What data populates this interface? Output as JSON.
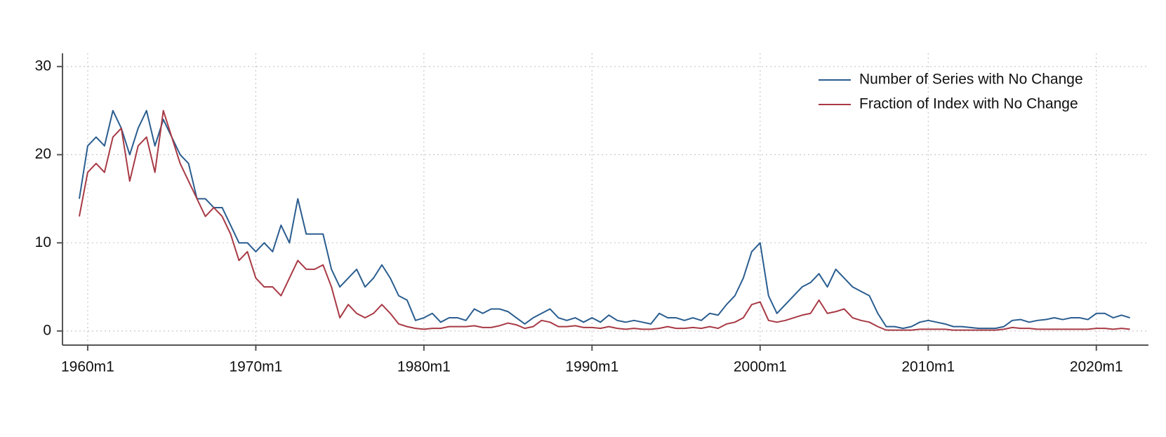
{
  "chart_data": {
    "type": "line",
    "x": [
      1959.5,
      1960,
      1960.5,
      1961,
      1961.5,
      1962,
      1962.5,
      1963,
      1963.5,
      1964,
      1964.5,
      1965,
      1965.5,
      1966,
      1966.5,
      1967,
      1967.5,
      1968,
      1968.5,
      1969,
      1969.5,
      1970,
      1970.5,
      1971,
      1971.5,
      1972,
      1972.5,
      1973,
      1973.5,
      1974,
      1974.5,
      1975,
      1975.5,
      1976,
      1976.5,
      1977,
      1977.5,
      1978,
      1978.5,
      1979,
      1979.5,
      1980,
      1980.5,
      1981,
      1981.5,
      1982,
      1982.5,
      1983,
      1983.5,
      1984,
      1984.5,
      1985,
      1985.5,
      1986,
      1986.5,
      1987,
      1987.5,
      1988,
      1988.5,
      1989,
      1989.5,
      1990,
      1990.5,
      1991,
      1991.5,
      1992,
      1992.5,
      1993,
      1993.5,
      1994,
      1994.5,
      1995,
      1995.5,
      1996,
      1996.5,
      1997,
      1997.5,
      1998,
      1998.5,
      1999,
      1999.5,
      2000,
      2000.5,
      2001,
      2001.5,
      2002,
      2002.5,
      2003,
      2003.5,
      2004,
      2004.5,
      2005,
      2005.5,
      2006,
      2006.5,
      2007,
      2007.5,
      2008,
      2008.5,
      2009,
      2009.5,
      2010,
      2010.5,
      2011,
      2011.5,
      2012,
      2012.5,
      2013,
      2013.5,
      2014,
      2014.5,
      2015,
      2015.5,
      2016,
      2016.5,
      2017,
      2017.5,
      2018,
      2018.5,
      2019,
      2019.5,
      2020,
      2020.5,
      2021,
      2021.5,
      2022
    ],
    "series": [
      {
        "name": "Number of Series with No Change",
        "color": "#2a5d8f",
        "values": [
          15,
          21,
          22,
          21,
          25,
          23,
          20,
          23,
          25,
          21,
          24,
          22,
          20,
          19,
          15,
          15,
          14,
          14,
          12,
          10,
          10,
          9,
          10,
          9,
          12,
          10,
          15,
          11,
          11,
          11,
          7,
          5,
          6,
          7,
          5,
          6,
          7.5,
          6,
          4,
          3.5,
          1.2,
          1.5,
          2,
          1,
          1.5,
          1.5,
          1.2,
          2.5,
          2,
          2.5,
          2.5,
          2.2,
          1.5,
          0.8,
          1.5,
          2,
          2.5,
          1.5,
          1.2,
          1.5,
          1,
          1.5,
          1,
          1.8,
          1.2,
          1,
          1.2,
          1,
          0.8,
          2,
          1.5,
          1.5,
          1.2,
          1.5,
          1.2,
          2,
          1.8,
          3,
          4,
          6,
          9,
          10,
          4,
          2,
          3,
          4,
          5,
          5.5,
          6.5,
          5,
          7,
          6,
          5,
          4.5,
          4,
          2,
          0.5,
          0.5,
          0.3,
          0.5,
          1,
          1.2,
          1,
          0.8,
          0.5,
          0.5,
          0.4,
          0.3,
          0.3,
          0.3,
          0.5,
          1.2,
          1.3,
          1,
          1.2,
          1.3,
          1.5,
          1.3,
          1.5,
          1.5,
          1.3,
          2,
          2,
          1.5,
          1.8,
          1.5
        ]
      },
      {
        "name": "Fraction of Index with No Change",
        "color": "#a83a45",
        "values": [
          13,
          18,
          19,
          18,
          22,
          23,
          17,
          21,
          22,
          18,
          25,
          22,
          19,
          17,
          15,
          13,
          14,
          13,
          11,
          8,
          9,
          6,
          5,
          5,
          4,
          6,
          8,
          7,
          7,
          7.5,
          5,
          1.5,
          3,
          2,
          1.5,
          2,
          3,
          2,
          0.8,
          0.5,
          0.3,
          0.2,
          0.3,
          0.3,
          0.5,
          0.5,
          0.5,
          0.6,
          0.4,
          0.4,
          0.6,
          0.9,
          0.7,
          0.3,
          0.5,
          1.2,
          1,
          0.5,
          0.5,
          0.6,
          0.4,
          0.4,
          0.3,
          0.5,
          0.3,
          0.2,
          0.3,
          0.2,
          0.2,
          0.3,
          0.5,
          0.3,
          0.3,
          0.4,
          0.3,
          0.5,
          0.3,
          0.8,
          1,
          1.5,
          3,
          3.3,
          1.2,
          1,
          1.2,
          1.5,
          1.8,
          2,
          3.5,
          2,
          2.2,
          2.5,
          1.5,
          1.2,
          1,
          0.5,
          0.1,
          0.1,
          0.1,
          0.1,
          0.2,
          0.2,
          0.2,
          0.2,
          0.1,
          0.1,
          0.1,
          0.1,
          0.1,
          0.1,
          0.2,
          0.4,
          0.3,
          0.3,
          0.2,
          0.2,
          0.2,
          0.2,
          0.2,
          0.2,
          0.2,
          0.3,
          0.3,
          0.2,
          0.3,
          0.2
        ]
      }
    ],
    "xlim": [
      1958.5,
      2023.1
    ],
    "xticks": [
      {
        "value": 1960,
        "label": "1960m1"
      },
      {
        "value": 1970,
        "label": "1970m1"
      },
      {
        "value": 1980,
        "label": "1980m1"
      },
      {
        "value": 1990,
        "label": "1990m1"
      },
      {
        "value": 2000,
        "label": "2000m1"
      },
      {
        "value": 2010,
        "label": "2010m1"
      },
      {
        "value": 2020,
        "label": "2020m1"
      }
    ],
    "ylim": [
      -1.6,
      31.5
    ],
    "yticks": [
      0,
      10,
      20,
      30
    ],
    "grid": true,
    "legend": "top-right"
  }
}
